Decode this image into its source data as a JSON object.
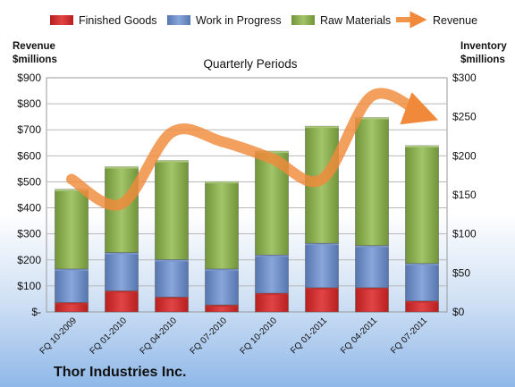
{
  "chart_data": {
    "type": "bar",
    "subtitle": "Quarterly Periods",
    "company": "Thor Industries Inc.",
    "left_axis": {
      "title_line1": "Revenue",
      "title_line2": "$millions",
      "ylim": [
        0,
        900
      ],
      "ticks": [
        "$-",
        "$100",
        "$200",
        "$300",
        "$400",
        "$500",
        "$600",
        "$700",
        "$800",
        "$900"
      ]
    },
    "right_axis": {
      "title_line1": "Inventory",
      "title_line2": "$millions",
      "ylim": [
        0,
        300
      ],
      "ticks": [
        "$0",
        "$50",
        "$100",
        "$150",
        "$200",
        "$250",
        "$300"
      ]
    },
    "categories": [
      "FQ 10-2009",
      "FQ 01-2010",
      "FQ 04-2010",
      "FQ 07-2010",
      "FQ 10-2010",
      "FQ 01-2011",
      "FQ 04-2011",
      "FQ 07-2011"
    ],
    "stacked": true,
    "series": [
      {
        "name": "Finished Goods",
        "axis": "right",
        "color": "#d42a2a",
        "values": [
          12,
          27,
          19,
          9,
          24,
          31,
          31,
          14
        ]
      },
      {
        "name": "Work in Progress",
        "axis": "right",
        "color": "#6f8fc8",
        "values": [
          43,
          49,
          48,
          46,
          49,
          57,
          54,
          48
        ]
      },
      {
        "name": "Raw Materials",
        "axis": "right",
        "color": "#8db04f",
        "values": [
          102,
          110,
          127,
          112,
          133,
          150,
          164,
          151
        ]
      }
    ],
    "line_series": {
      "name": "Revenue",
      "axis": "left",
      "color": "#f08a3a",
      "values": [
        510,
        415,
        690,
        655,
        590,
        510,
        830,
        760
      ]
    },
    "grid": true,
    "legend": "top"
  }
}
